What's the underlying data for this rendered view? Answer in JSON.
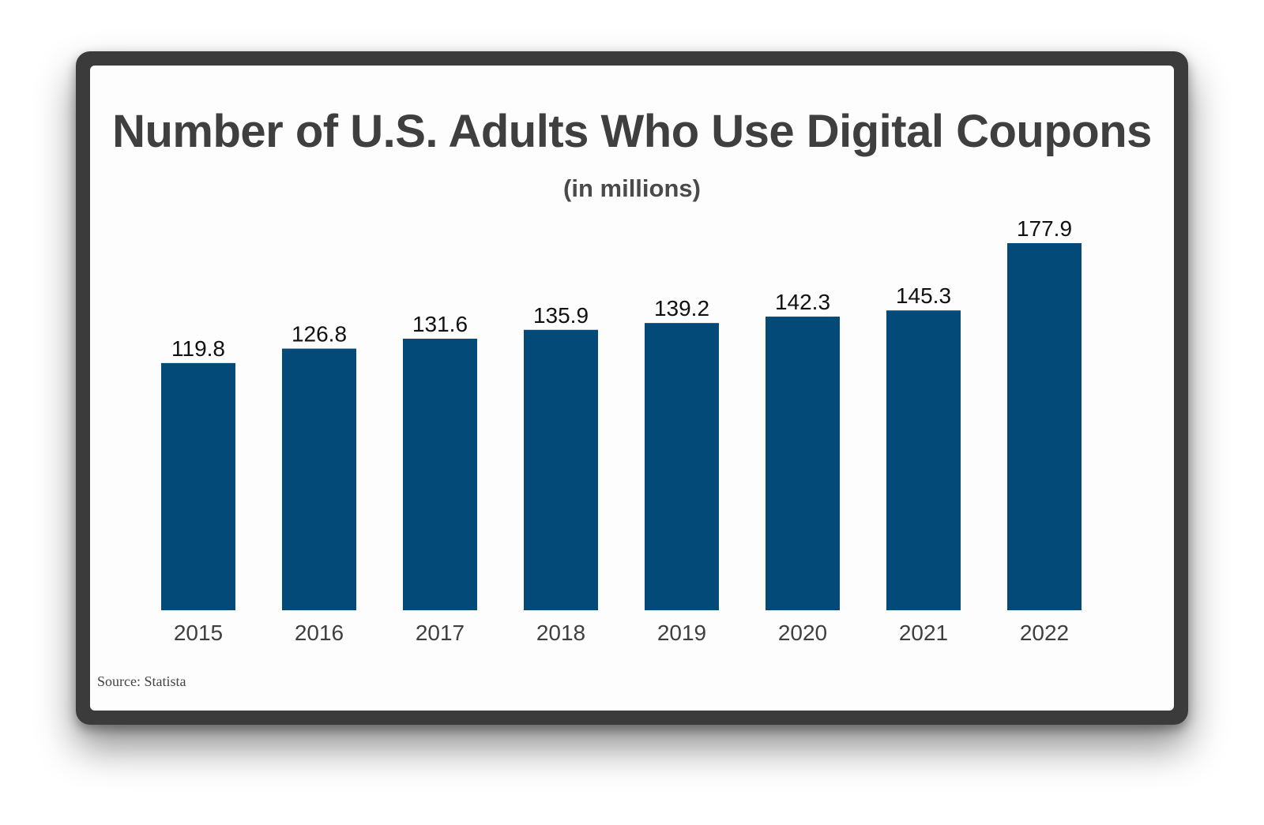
{
  "chart_data": {
    "type": "bar",
    "title": "Number of U.S. Adults Who Use Digital Coupons",
    "subtitle": "(in millions)",
    "categories": [
      "2015",
      "2016",
      "2017",
      "2018",
      "2019",
      "2020",
      "2021",
      "2022"
    ],
    "values": [
      119.8,
      126.8,
      131.6,
      135.9,
      139.2,
      142.3,
      145.3,
      177.9
    ],
    "value_labels": [
      "119.8",
      "126.8",
      "131.6",
      "135.9",
      "139.2",
      "142.3",
      "145.3",
      "177.9"
    ],
    "xlabel": "",
    "ylabel": "",
    "ylim": [
      0,
      177.9
    ],
    "grid": false,
    "bar_color": "#034a79",
    "source": "Source: Statista"
  }
}
